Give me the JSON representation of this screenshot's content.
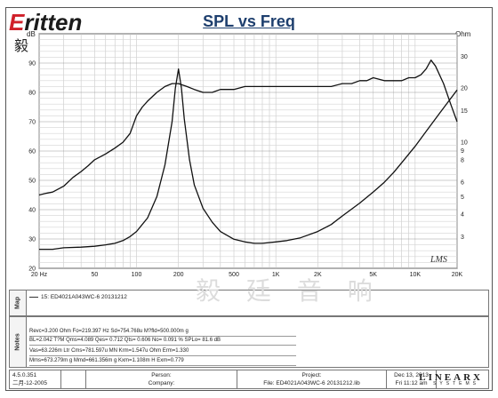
{
  "brand": {
    "name_prefix": "E",
    "name_rest": "ritten",
    "cn": "毅 廷 音 响"
  },
  "chart_data": {
    "type": "line",
    "title": "SPL vs Freq",
    "x_scale": "log",
    "xlim": [
      20,
      20000
    ],
    "xticks": [
      {
        "v": 20,
        "label": "20 Hz"
      },
      {
        "v": 50,
        "label": "50"
      },
      {
        "v": 100,
        "label": "100"
      },
      {
        "v": 200,
        "label": "200"
      },
      {
        "v": 500,
        "label": "500"
      },
      {
        "v": 1000,
        "label": "1K"
      },
      {
        "v": 2000,
        "label": "2K"
      },
      {
        "v": 5000,
        "label": "5K"
      },
      {
        "v": 10000,
        "label": "10K"
      },
      {
        "v": 20000,
        "label": "20K"
      }
    ],
    "y_left": {
      "unit": "dB",
      "ylim": [
        20,
        100
      ],
      "ticks": [
        20,
        30,
        40,
        50,
        60,
        70,
        80,
        90
      ]
    },
    "y_right": {
      "unit": "Ohm",
      "scale": "log",
      "ylim": [
        2,
        40
      ],
      "ticks": [
        {
          "v": 3,
          "label": "3"
        },
        {
          "v": 4,
          "label": "4"
        },
        {
          "v": 5,
          "label": "5"
        },
        {
          "v": 6,
          "label": "6"
        },
        {
          "v": 8,
          "label": "8"
        },
        {
          "v": 9,
          "label": "9"
        },
        {
          "v": 10,
          "label": "10"
        },
        {
          "v": 15,
          "label": "15"
        },
        {
          "v": 20,
          "label": "20"
        },
        {
          "v": 30,
          "label": "30"
        }
      ]
    },
    "grid": true,
    "series": [
      {
        "color": "#111111",
        "axis": "left",
        "x": [
          20,
          22,
          25,
          30,
          35,
          40,
          45,
          50,
          60,
          70,
          80,
          90,
          100,
          110,
          120,
          140,
          160,
          180,
          200,
          230,
          260,
          300,
          350,
          400,
          450,
          500,
          600,
          700,
          800,
          900,
          1000,
          1200,
          1400,
          1600,
          1800,
          2000,
          2500,
          3000,
          3500,
          4000,
          4500,
          5000,
          6000,
          7000,
          8000,
          9000,
          10000,
          11000,
          12000,
          13000,
          14000,
          16000,
          18000,
          20000
        ],
        "y": [
          45,
          45.5,
          46,
          48,
          51,
          53,
          55,
          57,
          59,
          61,
          63,
          66,
          72,
          75,
          77,
          80,
          82,
          83,
          83,
          82,
          81,
          80,
          80,
          81,
          81,
          81,
          82,
          82,
          82,
          82,
          82,
          82,
          82,
          82,
          82,
          82,
          82,
          83,
          83,
          84,
          84,
          85,
          84,
          84,
          84,
          85,
          85,
          86,
          88,
          91,
          89,
          83,
          76,
          70
        ]
      },
      {
        "color": "#111111",
        "axis": "right",
        "x": [
          20,
          25,
          30,
          40,
          50,
          60,
          70,
          80,
          90,
          100,
          120,
          140,
          160,
          180,
          190,
          200,
          210,
          220,
          240,
          260,
          300,
          350,
          400,
          500,
          600,
          700,
          800,
          1000,
          1200,
          1500,
          2000,
          2500,
          3000,
          4000,
          5000,
          6000,
          7000,
          8000,
          10000,
          12000,
          15000,
          18000,
          20000
        ],
        "y": [
          2.55,
          2.55,
          2.6,
          2.62,
          2.65,
          2.7,
          2.75,
          2.85,
          3.0,
          3.2,
          3.8,
          5.0,
          7.5,
          13.0,
          20.0,
          25.5,
          20.0,
          13.5,
          8.0,
          5.8,
          4.3,
          3.6,
          3.2,
          2.9,
          2.8,
          2.75,
          2.75,
          2.8,
          2.85,
          2.95,
          3.2,
          3.5,
          3.9,
          4.6,
          5.3,
          6.0,
          6.8,
          7.7,
          9.5,
          11.5,
          14.5,
          17.5,
          19.5
        ]
      }
    ]
  },
  "lms_mark": "LMS",
  "map": {
    "label": "Map",
    "entry": "15: ED4021A043WC-6  20131212"
  },
  "notes": {
    "label": "Notes",
    "lines": [
      "Revc=3.200 Ohm  Fo=219.397 Hz  Sd=754.768u M?fld=500.000m g",
      "BL=2.042 T?M  Qms=4.089  Qes= 0.712  Qts= 0.606  No= 0.091 %  SPLo= 81.6 dB",
      "Vas=63.226m Ltr  Cms=781.597u MN  Krm=1.547u Ohm  Erm=1.330",
      "Mms=673.279m g  Mmd=661.356m g  Kxm=1.108m H  Exm=0.779"
    ]
  },
  "watermark": "毅 廷 音 响",
  "footer": {
    "version": "4.5.0.351",
    "date_ver": "二月-12-2005",
    "person_label": "Person:",
    "company_label": "Company:",
    "project_label": "Project:",
    "file_label": "File: ED4021A043WC-6 20131212.lib",
    "date": "Dec 13, 2013",
    "time": "Fri 11:12 am",
    "logo_main": "LINEAR",
    "logo_x": "X",
    "logo_sub": "SYSTEMS"
  }
}
